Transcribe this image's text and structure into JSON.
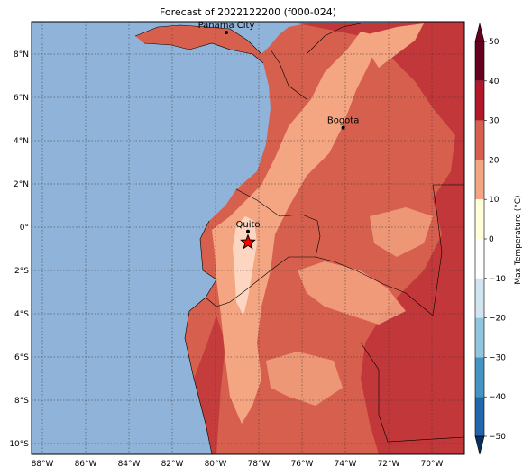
{
  "title": "Forecast of 2022122200 (f000-024)",
  "colorbar": {
    "label": "Max Temperature (°C)",
    "ticks": [
      "50",
      "40",
      "30",
      "20",
      "10",
      "0",
      "−10",
      "−20",
      "−30",
      "−40",
      "−50"
    ],
    "colors": [
      "#67001f",
      "#b2182b",
      "#d6604d",
      "#f4a582",
      "#fddbc7",
      "#ffffff",
      "#d1e5f0",
      "#92c5de",
      "#4393c3",
      "#2166ac",
      "#053061"
    ],
    "extend_top": "#67001f",
    "extend_bottom": "#053061"
  },
  "axes": {
    "lon_labels": [
      "88°W",
      "86°W",
      "84°W",
      "82°W",
      "80°W",
      "78°W",
      "76°W",
      "74°W",
      "72°W",
      "70°W"
    ],
    "lat_labels": [
      "8°N",
      "6°N",
      "4°N",
      "2°N",
      "0°",
      "2°S",
      "4°S",
      "6°S",
      "8°S",
      "10°S"
    ]
  },
  "cities": [
    {
      "name": "Panama City",
      "lon": -79.5,
      "lat": 9.0
    },
    {
      "name": "Bogota",
      "lon": -74.1,
      "lat": 4.6
    },
    {
      "name": "Quito",
      "lon": -78.5,
      "lat": -0.2
    }
  ],
  "marker": {
    "name": "star",
    "lon": -78.5,
    "lat": -0.7,
    "color": "#ff0000"
  },
  "colors": {
    "ocean": "#8fb3d9",
    "land_base": "#d6604d",
    "warm": "#f4a582",
    "hot": "#b2182b",
    "cool": "#fddbc7"
  }
}
